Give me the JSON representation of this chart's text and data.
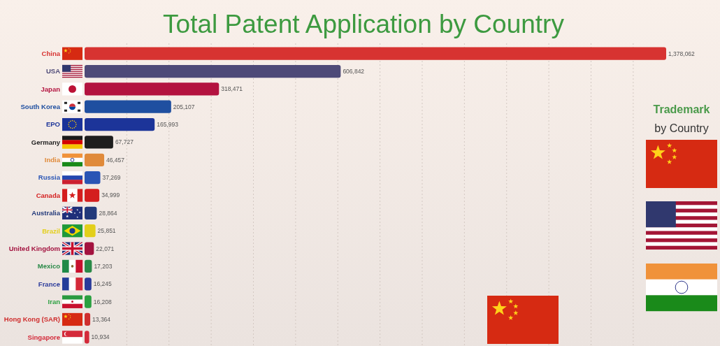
{
  "chart_data": {
    "type": "bar",
    "orientation": "horizontal",
    "title": "Total Patent Application by Country",
    "categories": [
      "China",
      "USA",
      "Japan",
      "South Korea",
      "EPO",
      "Germany",
      "India",
      "Russia",
      "Canada",
      "Australia",
      "Brazil",
      "United Kingdom",
      "Mexico",
      "France",
      "Iran",
      "Hong Kong (SAR)",
      "Singapore"
    ],
    "values": [
      1378062,
      606842,
      318471,
      205107,
      165993,
      67727,
      46457,
      37269,
      34999,
      28864,
      25851,
      22071,
      17203,
      16245,
      16208,
      13364,
      10934
    ],
    "value_labels": [
      "1,378,062",
      "606,842",
      "318,471",
      "205,107",
      "165,993",
      "67,727",
      "46,457",
      "37,269",
      "34,999",
      "28,864",
      "25,851",
      "22,071",
      "17,203",
      "16,245",
      "16,208",
      "13,364",
      "10,934"
    ],
    "colors": [
      "#d73331",
      "#4e4a78",
      "#b3123f",
      "#1f4fa0",
      "#1c3499",
      "#1e1e1e",
      "#e08a3a",
      "#2a55b5",
      "#d41e1e",
      "#22397a",
      "#e3cf1a",
      "#a3123f",
      "#2a8a48",
      "#2a3a9a",
      "#2aa040",
      "#cf2e2e",
      "#d42a3a"
    ],
    "grid": "x",
    "tick_labels": "y",
    "annotations": [
      "Trademark",
      "by Country"
    ]
  }
}
